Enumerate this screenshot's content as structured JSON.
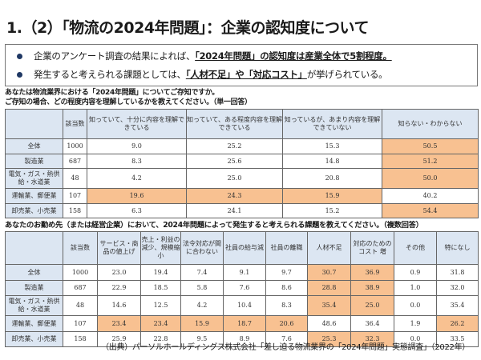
{
  "title": "1.（2）「物流の2024年問題」：企業の認知度について",
  "bullets": [
    {
      "pre": "企業のアンケート調査の結果によれば、",
      "em": "「2024年問題」の認知度は産業全体で5割程度。",
      "post": ""
    },
    {
      "pre": "発生すると考えられる課題としては、",
      "em": "「人材不足」や「対応コスト」",
      "post": "が挙げられている。"
    }
  ],
  "q1": {
    "line1": "あなたは物流業界における「2024年問題」についてご存知ですか。",
    "line2": "ご存知の場合、どの程度内容を理解しているかを教えてください。（単一回答）"
  },
  "table1": {
    "headers": [
      "",
      "該当数",
      "知っていて、十分に内容を理解できている",
      "知っていて、ある程度内容を理解できている",
      "知っているが、あまり内容を理解できていない",
      "知らない・わからない"
    ],
    "rows": [
      {
        "cells": [
          "全体",
          "1000",
          "9.0",
          "25.2",
          "15.3",
          "50.5"
        ],
        "hl": [
          5
        ]
      },
      {
        "cells": [
          "製造業",
          "687",
          "8.3",
          "25.6",
          "14.8",
          "51.2"
        ],
        "hl": [
          5
        ]
      },
      {
        "cells": [
          "電気・ガス・熱供給・水道業",
          "48",
          "4.2",
          "25.0",
          "20.8",
          "50.0"
        ],
        "hl": [
          5
        ]
      },
      {
        "cells": [
          "運輸業、郵便業",
          "107",
          "19.6",
          "24.3",
          "15.9",
          "40.2"
        ],
        "hl": [
          2,
          3,
          4
        ]
      },
      {
        "cells": [
          "卸売業、小売業",
          "158",
          "6.3",
          "24.1",
          "15.2",
          "54.4"
        ],
        "hl": [
          5
        ]
      }
    ]
  },
  "q2": "あなたのお勤め先（または経営企業）において、2024年問題によって発生すると考えられる課題を教えてください。（複数回答）",
  "table2": {
    "headers": [
      "",
      "該当数",
      "サービス・商品の値上げ",
      "売上・利益の減少、規模縮小",
      "法令対応が間に合わない",
      "社員の給与減",
      "社員の離職",
      "人材不足",
      "対応のためのコスト 増",
      "その他",
      "特になし"
    ],
    "rows": [
      {
        "cells": [
          "全体",
          "1000",
          "23.0",
          "19.4",
          "7.4",
          "9.1",
          "9.7",
          "30.7",
          "36.9",
          "0.9",
          "31.8"
        ],
        "hl": [
          7,
          8
        ]
      },
      {
        "cells": [
          "製造業",
          "687",
          "22.9",
          "18.5",
          "5.8",
          "7.6",
          "8.6",
          "28.8",
          "38.9",
          "1.0",
          "32.0"
        ],
        "hl": [
          7,
          8
        ]
      },
      {
        "cells": [
          "電気・ガス・熱供給・水道業",
          "48",
          "14.6",
          "12.5",
          "4.2",
          "10.4",
          "8.3",
          "35.4",
          "25.0",
          "0.0",
          "35.4"
        ],
        "hl": [
          7,
          8
        ]
      },
      {
        "cells": [
          "運輸業、郵便業",
          "107",
          "23.4",
          "23.4",
          "15.9",
          "18.7",
          "20.6",
          "48.6",
          "36.4",
          "1.9",
          "26.2"
        ],
        "hl": [
          2,
          3,
          4,
          5,
          6,
          10
        ]
      },
      {
        "cells": [
          "卸売業、小売業",
          "158",
          "25.9",
          "22.8",
          "9.5",
          "8.9",
          "7.6",
          "25.3",
          "32.3",
          "0.0",
          "33.5"
        ],
        "hl": [
          7,
          8
        ]
      }
    ]
  },
  "source": "（出典）パーソルホールディングス株式会社「差し迫る物流業界の「2024年問題」実態調査」（2022年）",
  "colors": {
    "highlight": "#f8c191",
    "header": "#dce6f2",
    "bullet": "#1f3864"
  }
}
